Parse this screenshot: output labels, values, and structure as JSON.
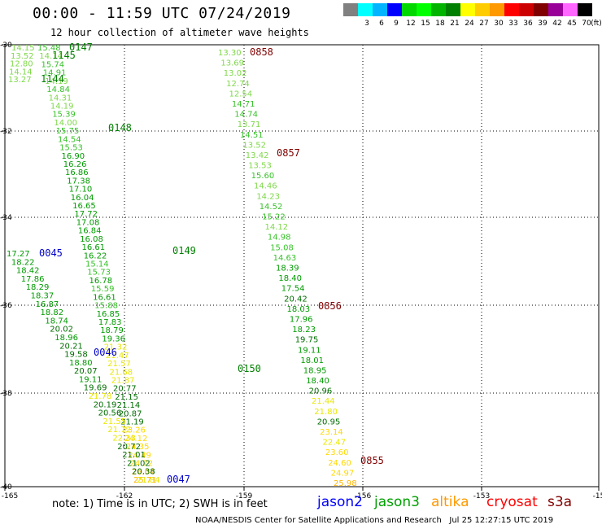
{
  "header": {
    "title": "00:00 - 11:59 UTC 07/24/2019",
    "subtitle": "12 hour collection of altimeter wave heights"
  },
  "legend": {
    "unit": "(ft)",
    "bins": [
      {
        "label": "",
        "color": "#808080"
      },
      {
        "label": "3",
        "color": "#00ffff"
      },
      {
        "label": "6",
        "color": "#00b4ff"
      },
      {
        "label": "9",
        "color": "#0000ff"
      },
      {
        "label": "12",
        "color": "#00d800"
      },
      {
        "label": "15",
        "color": "#00ff00"
      },
      {
        "label": "18",
        "color": "#00b400"
      },
      {
        "label": "21",
        "color": "#008000"
      },
      {
        "label": "24",
        "color": "#ffff00"
      },
      {
        "label": "27",
        "color": "#ffcc00"
      },
      {
        "label": "30",
        "color": "#ff9900"
      },
      {
        "label": "33",
        "color": "#ff0000"
      },
      {
        "label": "36",
        "color": "#cc0000"
      },
      {
        "label": "39",
        "color": "#800000"
      },
      {
        "label": "42",
        "color": "#990099"
      },
      {
        "label": "45",
        "color": "#ff66ff"
      },
      {
        "label": "70",
        "color": "#000000"
      }
    ]
  },
  "axes": {
    "lon_ticks": [
      "-165",
      "-162",
      "-159",
      "-156",
      "-153",
      "-15"
    ],
    "lat_ticks": [
      "-30",
      "-32",
      "-34",
      "-36",
      "-38",
      "-40"
    ]
  },
  "tracks": [
    {
      "name": "jason3-west-left",
      "color": "#00b400",
      "values": [
        "14.15",
        "13.52",
        "12.80",
        "14.14",
        "13.27"
      ]
    },
    {
      "name": "jason3-west-right",
      "color": "#00b400",
      "values": [
        "15.48",
        "14.14",
        "15.74",
        "14.91",
        "14.19",
        "14.84",
        "14.31",
        "14.19",
        "15.39",
        "14.00",
        "15.75",
        "14.54",
        "15.53",
        "16.90",
        "16.26",
        "16.86",
        "17.38",
        "17.10",
        "16.04",
        "16.65",
        "17.72",
        "17.08",
        "16.84",
        "16.08",
        "16.61",
        "16.22",
        "15.14",
        "15.73",
        "16.78",
        "15.59",
        "16.61",
        "15.88",
        "16.85",
        "17.83",
        "18.79",
        "19.36",
        "21.32",
        "21.47",
        "21.57",
        "21.68",
        "21.87",
        "20.77",
        "21.15",
        "21.14",
        "20.87",
        "21.19",
        "23.26",
        "24.12",
        "24.35",
        "24.49",
        "24.72",
        "26.04",
        "25.71"
      ]
    },
    {
      "name": "jason2-track",
      "color": "#008000",
      "values": [
        "17.27",
        "18.22",
        "18.42",
        "17.86",
        "18.29",
        "18.37",
        "16.87",
        "18.82",
        "18.74",
        "20.02",
        "18.96",
        "20.21",
        "19.58",
        "18.80",
        "20.07",
        "19.11",
        "19.69",
        "21.78",
        "20.19",
        "20.56",
        "21.55",
        "21.72",
        "22.33",
        "20.72",
        "21.01",
        "21.02",
        "20.38",
        "21.84"
      ]
    },
    {
      "name": "jason3-east",
      "color": "#00b400",
      "values": [
        "13.30",
        "13.69",
        "13.02",
        "12.74",
        "12.54",
        "14.71",
        "14.74",
        "13.71",
        "14.51",
        "13.52",
        "13.42",
        "13.53",
        "15.60",
        "14.46",
        "14.23",
        "14.52",
        "15.22",
        "14.12",
        "14.98",
        "15.08",
        "14.63",
        "18.39",
        "18.40",
        "17.54",
        "20.42",
        "18.03",
        "17.96",
        "18.23",
        "19.75",
        "19.11",
        "18.01",
        "18.95",
        "18.40",
        "20.96",
        "21.44",
        "21.80",
        "20.95",
        "23.14",
        "22.47",
        "23.60",
        "24.60",
        "24.97",
        "25.98"
      ]
    }
  ],
  "time_labels": [
    {
      "text": "0147",
      "color": "#008000"
    },
    {
      "text": "1145",
      "color": "#008000"
    },
    {
      "text": "1144",
      "color": "#008000"
    },
    {
      "text": "0148",
      "color": "#008000"
    },
    {
      "text": "0149",
      "color": "#008000"
    },
    {
      "text": "0150",
      "color": "#008000"
    },
    {
      "text": "0045",
      "color": "#0000cc"
    },
    {
      "text": "0046",
      "color": "#0000cc"
    },
    {
      "text": "0047",
      "color": "#0000cc"
    },
    {
      "text": "0858",
      "color": "#800000"
    },
    {
      "text": "0857",
      "color": "#800000"
    },
    {
      "text": "0856",
      "color": "#800000"
    },
    {
      "text": "0855",
      "color": "#800000"
    }
  ],
  "footer": {
    "note": "note: 1) Time is in UTC; 2) SWH is in feet",
    "satellites": [
      {
        "name": "jason2",
        "color": "#0000ff"
      },
      {
        "name": "jason3",
        "color": "#00a000"
      },
      {
        "name": "altika",
        "color": "#ff9900"
      },
      {
        "name": "cryosat",
        "color": "#ff0000"
      },
      {
        "name": "s3a",
        "color": "#800000"
      }
    ],
    "credit": "NOAA/NESDIS Center for Satellite Applications and Research   Jul 25 12:27:15 UTC 2019"
  }
}
